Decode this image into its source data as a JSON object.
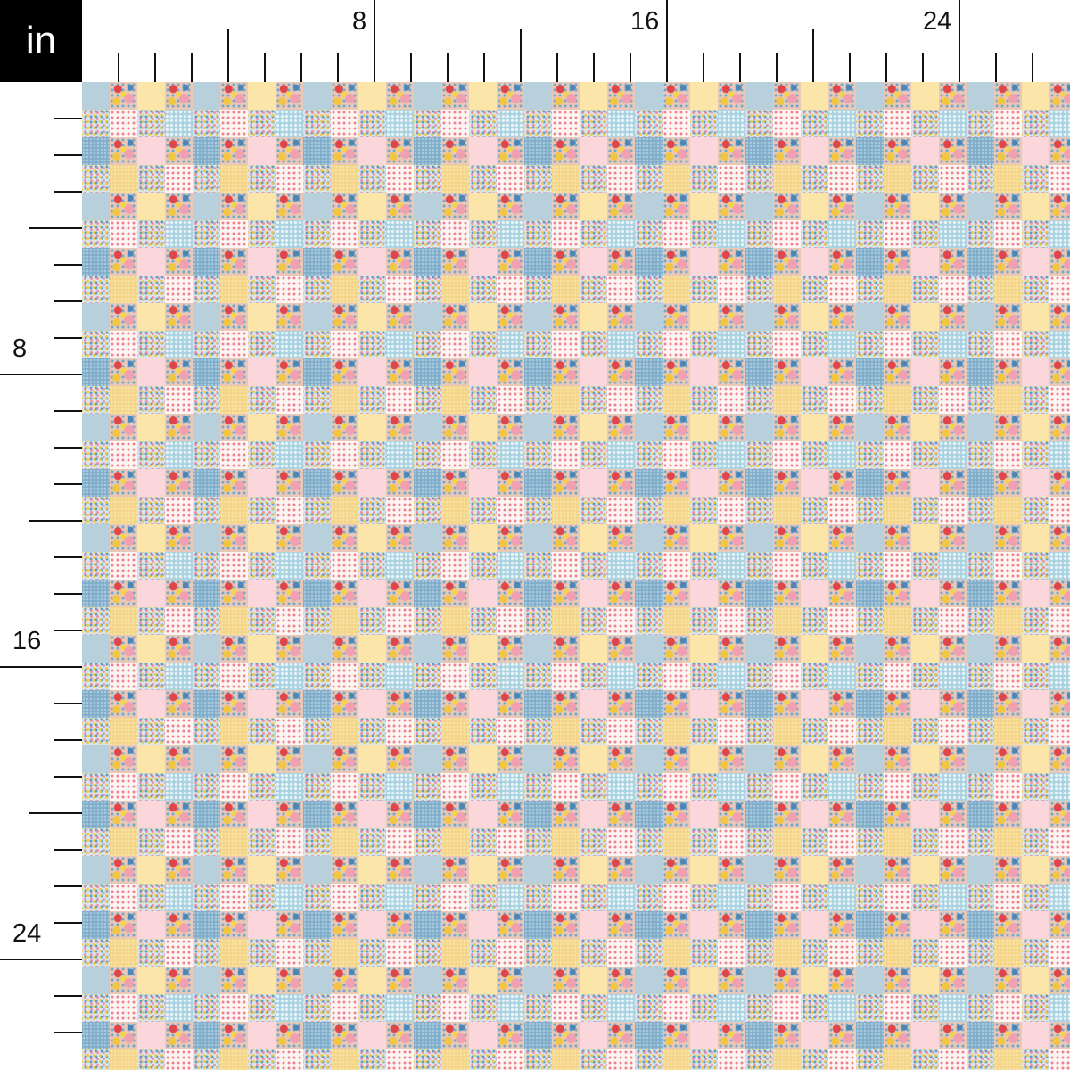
{
  "unit_label": "in",
  "ruler": {
    "labels": [
      "8",
      "16",
      "24"
    ],
    "label_every_inches": 8,
    "major_every_inches": 4
  },
  "colors": {
    "blue": "#b8d0dc",
    "medium_blue": "#7fadc9",
    "yellow": "#fbe5a8",
    "yellow_texture": "#f4d488",
    "pink": "#fbd6da",
    "dots_white": "#fdf5f2",
    "light_blue_pattern": "#a9d2e0",
    "small_floral": "#d8e7ee",
    "floral": "#e9c8b8"
  },
  "pattern": [
    [
      "blue",
      "floral",
      "yellow",
      "floral"
    ],
    [
      "small_floral",
      "dots_white",
      "small_floral",
      "light_blue_pattern"
    ],
    [
      "medium_blue",
      "floral",
      "pink",
      "floral"
    ],
    [
      "small_floral",
      "yellow_texture",
      "small_floral",
      "dots_white"
    ]
  ]
}
